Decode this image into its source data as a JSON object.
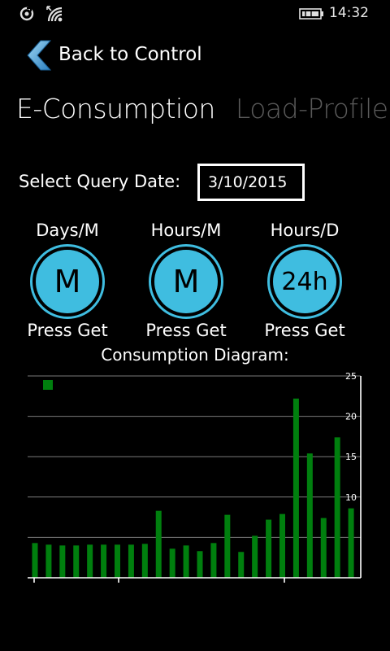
{
  "status_bar": {
    "time": "14:32",
    "icons": [
      "sync-icon",
      "wifi-icon",
      "battery-charging-icon"
    ]
  },
  "nav": {
    "back_label": "Back to Control"
  },
  "pivot": {
    "tabs": [
      {
        "label": "E-Consumption",
        "active": true
      },
      {
        "label": "Load-Profile",
        "active": false
      }
    ]
  },
  "query": {
    "label": "Select Query Date:",
    "date": "3/10/2015"
  },
  "round_buttons": [
    {
      "title": "Days/M",
      "glyph": "M",
      "caption": "Press Get"
    },
    {
      "title": "Hours/M",
      "glyph": "M",
      "caption": "Press Get"
    },
    {
      "title": "Hours/D",
      "glyph": "24h",
      "caption": "Press Get"
    }
  ],
  "diagram": {
    "title": "Consumption Diagram:"
  },
  "colors": {
    "accent": "#3fbde0",
    "bar": "#007f0e",
    "inactive_tab": "#5a5a5a"
  },
  "chart_data": {
    "type": "bar",
    "ylim": [
      0,
      25
    ],
    "yticks": [
      5,
      10,
      15,
      20,
      25
    ],
    "grid": true,
    "legend": "top-left",
    "series": [
      {
        "values": [
          4.3,
          4.1,
          4.0,
          4.0,
          4.1,
          4.1,
          4.1,
          4.1,
          4.2,
          8.3,
          3.6,
          4.0,
          3.3,
          4.3,
          7.8,
          3.2,
          5.2,
          7.2,
          7.9,
          22.2,
          15.4,
          7.4,
          17.4,
          8.6
        ]
      }
    ]
  }
}
